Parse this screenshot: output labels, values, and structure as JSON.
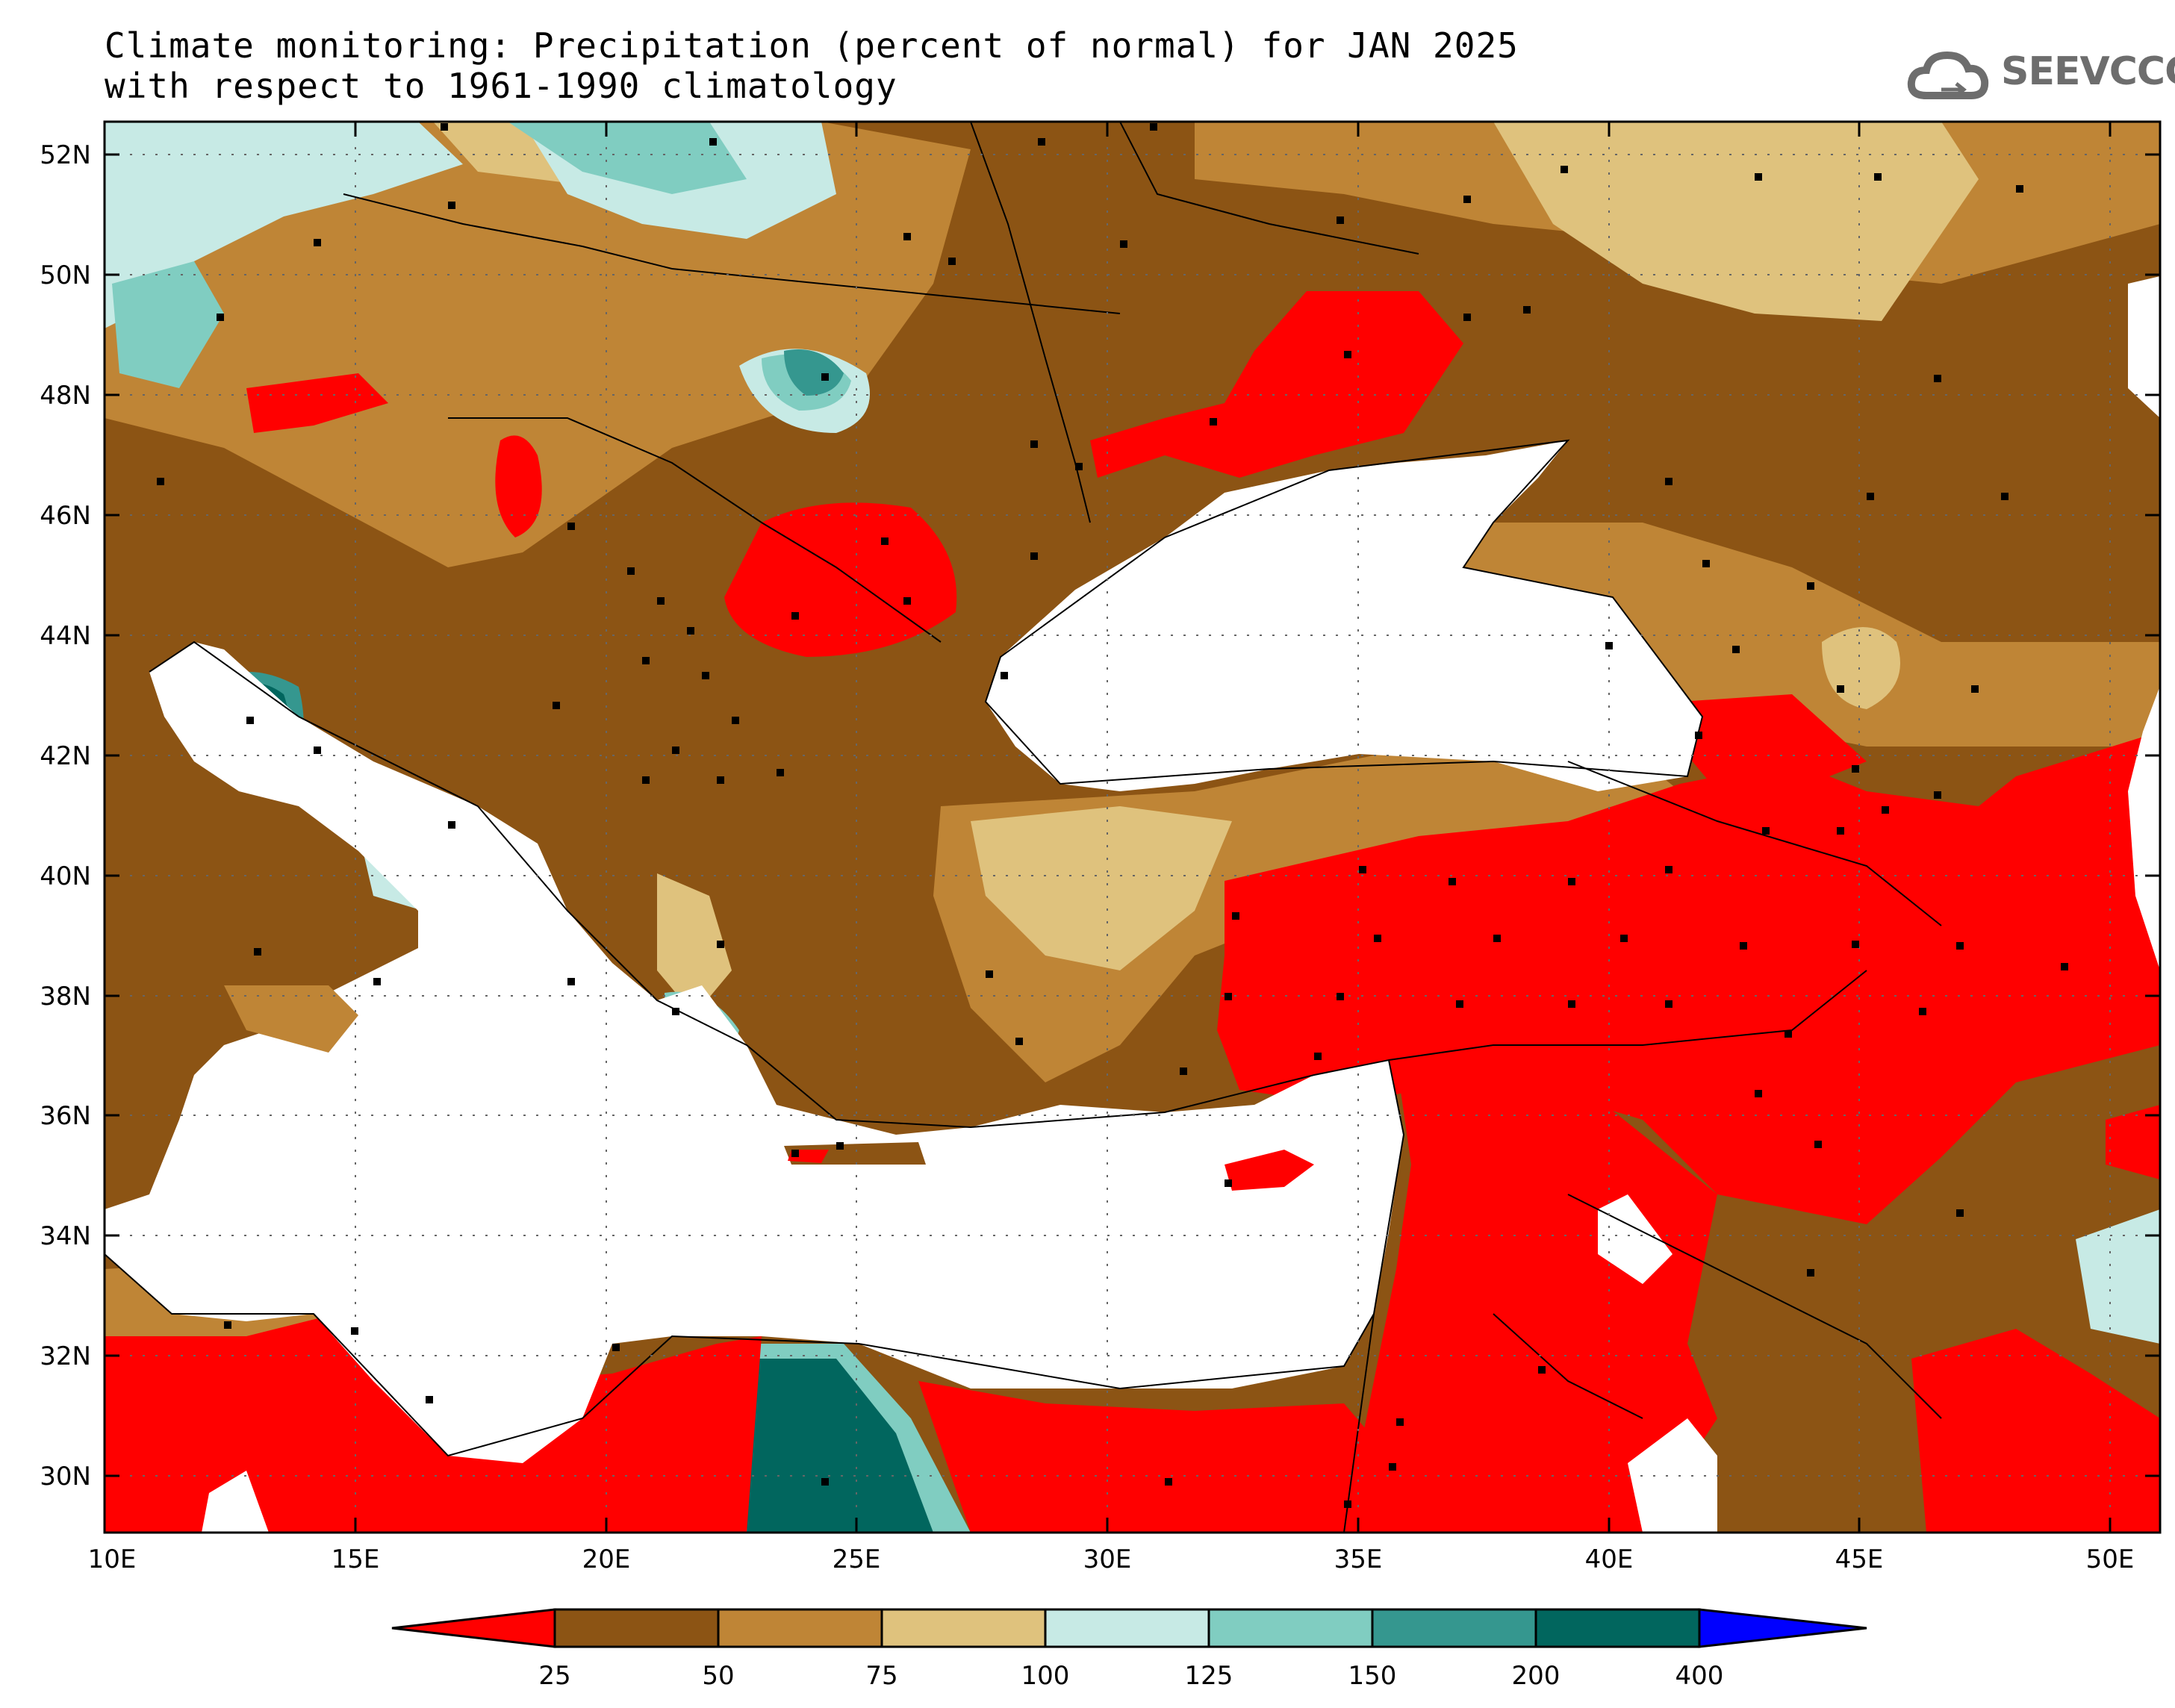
{
  "title_line1": "Climate monitoring: Precipitation (percent of normal) for JAN 2025",
  "title_line2": "with respect to 1961-1990 climatology",
  "logo_text": "SEEVCCC",
  "logo_icon": "cloud-icon",
  "map": {
    "lon_range": [
      10,
      51
    ],
    "lat_range": [
      29,
      52.5
    ],
    "lat_labels": [
      "30N",
      "32N",
      "34N",
      "36N",
      "38N",
      "40N",
      "42N",
      "44N",
      "46N",
      "48N",
      "50N",
      "52N"
    ],
    "lon_labels": [
      "10E",
      "15E",
      "20E",
      "25E",
      "30E",
      "35E",
      "40E",
      "45E",
      "50E"
    ],
    "grid": "dotted"
  },
  "legend": {
    "unit": "percent of normal",
    "ticks": [
      "25",
      "50",
      "75",
      "100",
      "125",
      "150",
      "200",
      "400"
    ],
    "colors": [
      "#ff0000",
      "#8c5414",
      "#bf8536",
      "#dfc27d",
      "#c7eae5",
      "#80cdc1",
      "#35978f",
      "#01665e",
      "#0000ff"
    ]
  },
  "colors": {
    "land_background": "#8c5414",
    "sea": "#ffffff",
    "station": "#000000"
  }
}
